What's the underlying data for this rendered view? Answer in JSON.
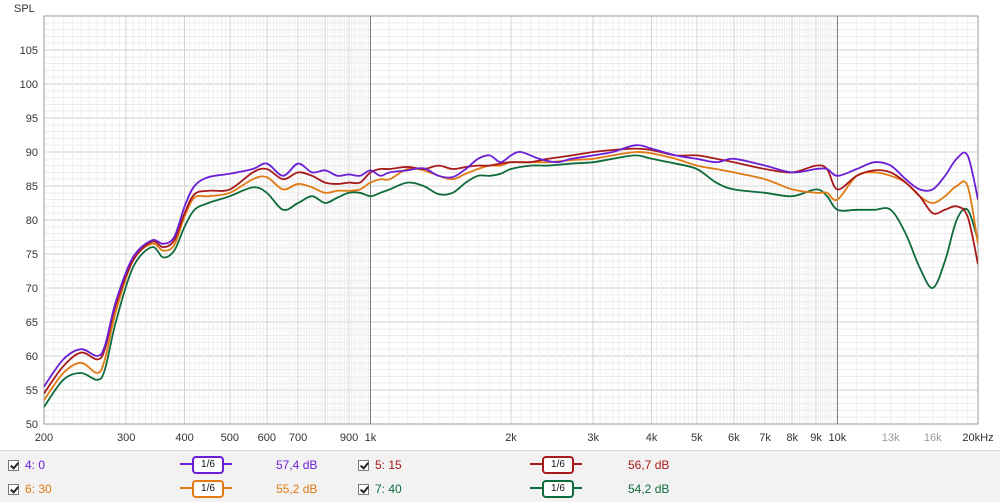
{
  "chart_data": {
    "type": "line",
    "ylabel": "SPL",
    "xlabel": "",
    "x_scale": "log",
    "xlim": [
      200,
      20000
    ],
    "ylim": [
      50,
      110
    ],
    "x_ticks": [
      {
        "v": 200,
        "t": "200"
      },
      {
        "v": 300,
        "t": "300"
      },
      {
        "v": 400,
        "t": "400"
      },
      {
        "v": 500,
        "t": "500"
      },
      {
        "v": 600,
        "t": "600"
      },
      {
        "v": 700,
        "t": "700"
      },
      {
        "v": 900,
        "t": "900"
      },
      {
        "v": 1000,
        "t": "1k"
      },
      {
        "v": 2000,
        "t": "2k"
      },
      {
        "v": 3000,
        "t": "3k"
      },
      {
        "v": 4000,
        "t": "4k"
      },
      {
        "v": 5000,
        "t": "5k"
      },
      {
        "v": 6000,
        "t": "6k"
      },
      {
        "v": 7000,
        "t": "7k"
      },
      {
        "v": 8000,
        "t": "8k"
      },
      {
        "v": 9000,
        "t": "9k"
      },
      {
        "v": 10000,
        "t": "10k"
      },
      {
        "v": 13000,
        "t": "13k",
        "light": true
      },
      {
        "v": 16000,
        "t": "16k",
        "light": true
      },
      {
        "v": 20000,
        "t": "20kHz"
      }
    ],
    "y_ticks": [
      50,
      55,
      60,
      65,
      70,
      75,
      80,
      85,
      90,
      95,
      100,
      105
    ],
    "grid": true,
    "series": [
      {
        "name": "4: 0",
        "color": "#6c1fd6",
        "smoothing": "1/6",
        "level": "57,4 dB",
        "points": [
          [
            200,
            55.5
          ],
          [
            220,
            59.5
          ],
          [
            240,
            61
          ],
          [
            260,
            60
          ],
          [
            270,
            61.5
          ],
          [
            285,
            68
          ],
          [
            310,
            74.5
          ],
          [
            340,
            77
          ],
          [
            360,
            76.5
          ],
          [
            380,
            77.5
          ],
          [
            400,
            82
          ],
          [
            420,
            85
          ],
          [
            450,
            86.3
          ],
          [
            500,
            86.8
          ],
          [
            560,
            87.5
          ],
          [
            600,
            88.3
          ],
          [
            650,
            86.5
          ],
          [
            700,
            88.3
          ],
          [
            750,
            87
          ],
          [
            800,
            87.3
          ],
          [
            850,
            86.5
          ],
          [
            900,
            86.7
          ],
          [
            950,
            86.5
          ],
          [
            1000,
            87.3
          ],
          [
            1050,
            86.5
          ],
          [
            1100,
            87
          ],
          [
            1200,
            87.3
          ],
          [
            1300,
            87.6
          ],
          [
            1400,
            86.5
          ],
          [
            1500,
            86.3
          ],
          [
            1600,
            87.5
          ],
          [
            1700,
            89
          ],
          [
            1800,
            89.5
          ],
          [
            1900,
            88.5
          ],
          [
            2000,
            89.5
          ],
          [
            2100,
            90
          ],
          [
            2300,
            89
          ],
          [
            2500,
            88.5
          ],
          [
            2700,
            89
          ],
          [
            3000,
            89.5
          ],
          [
            3300,
            90
          ],
          [
            3700,
            91
          ],
          [
            4000,
            90.5
          ],
          [
            4500,
            89.5
          ],
          [
            5000,
            89
          ],
          [
            5500,
            88.5
          ],
          [
            6000,
            89
          ],
          [
            7000,
            88
          ],
          [
            8000,
            87
          ],
          [
            9000,
            87.5
          ],
          [
            9500,
            87.5
          ],
          [
            10000,
            86.5
          ],
          [
            11000,
            87.5
          ],
          [
            12000,
            88.5
          ],
          [
            13000,
            88
          ],
          [
            14000,
            86
          ],
          [
            15000,
            84.5
          ],
          [
            16000,
            84.5
          ],
          [
            17000,
            86.5
          ],
          [
            18000,
            89
          ],
          [
            19000,
            89.5
          ],
          [
            20000,
            83
          ]
        ]
      },
      {
        "name": "5: 15",
        "color": "#a81a1a",
        "smoothing": "1/6",
        "level": "56,7 dB",
        "points": [
          [
            200,
            54.5
          ],
          [
            220,
            58.5
          ],
          [
            240,
            60.5
          ],
          [
            260,
            59.5
          ],
          [
            270,
            61
          ],
          [
            285,
            67.5
          ],
          [
            310,
            74
          ],
          [
            340,
            76.8
          ],
          [
            360,
            76
          ],
          [
            380,
            77
          ],
          [
            400,
            81
          ],
          [
            420,
            83.8
          ],
          [
            450,
            84.3
          ],
          [
            500,
            84.5
          ],
          [
            560,
            87
          ],
          [
            600,
            87.5
          ],
          [
            650,
            86
          ],
          [
            700,
            87
          ],
          [
            750,
            86.5
          ],
          [
            800,
            85.5
          ],
          [
            850,
            85.3
          ],
          [
            900,
            85.5
          ],
          [
            950,
            85.5
          ],
          [
            1000,
            87
          ],
          [
            1050,
            87.5
          ],
          [
            1100,
            87.5
          ],
          [
            1200,
            87.8
          ],
          [
            1300,
            87.5
          ],
          [
            1400,
            88
          ],
          [
            1500,
            87.5
          ],
          [
            1600,
            87.8
          ],
          [
            1700,
            88
          ],
          [
            1800,
            88
          ],
          [
            1900,
            88.3
          ],
          [
            2000,
            88.5
          ],
          [
            2200,
            88.5
          ],
          [
            2400,
            89
          ],
          [
            2700,
            89.5
          ],
          [
            3000,
            90
          ],
          [
            3300,
            90.3
          ],
          [
            3700,
            90.5
          ],
          [
            4000,
            90.3
          ],
          [
            4500,
            89.5
          ],
          [
            5000,
            89.5
          ],
          [
            5500,
            89
          ],
          [
            6000,
            88.5
          ],
          [
            7000,
            87.5
          ],
          [
            8000,
            87
          ],
          [
            9000,
            88
          ],
          [
            9500,
            87.5
          ],
          [
            10000,
            84.5
          ],
          [
            11000,
            86.5
          ],
          [
            12000,
            87.3
          ],
          [
            13000,
            87
          ],
          [
            14000,
            85.5
          ],
          [
            15000,
            83.5
          ],
          [
            16000,
            81
          ],
          [
            17000,
            81.5
          ],
          [
            18000,
            82
          ],
          [
            19000,
            80.5
          ],
          [
            20000,
            73.5
          ]
        ]
      },
      {
        "name": "6: 30",
        "color": "#e07a12",
        "smoothing": "1/6",
        "level": "55,2 dB",
        "points": [
          [
            200,
            53.5
          ],
          [
            220,
            57.5
          ],
          [
            240,
            59
          ],
          [
            260,
            57.5
          ],
          [
            270,
            59.5
          ],
          [
            285,
            66.5
          ],
          [
            310,
            74
          ],
          [
            340,
            76.5
          ],
          [
            360,
            75.5
          ],
          [
            380,
            76.3
          ],
          [
            400,
            80.5
          ],
          [
            420,
            83.3
          ],
          [
            450,
            83.5
          ],
          [
            500,
            84
          ],
          [
            560,
            86
          ],
          [
            600,
            86.3
          ],
          [
            650,
            84.5
          ],
          [
            700,
            85.3
          ],
          [
            750,
            84.8
          ],
          [
            800,
            84
          ],
          [
            850,
            84.3
          ],
          [
            900,
            84.3
          ],
          [
            950,
            84.5
          ],
          [
            1000,
            85.5
          ],
          [
            1050,
            86
          ],
          [
            1100,
            86
          ],
          [
            1200,
            87.5
          ],
          [
            1300,
            87.3
          ],
          [
            1400,
            86.5
          ],
          [
            1500,
            86
          ],
          [
            1600,
            86.8
          ],
          [
            1700,
            87.5
          ],
          [
            1800,
            88
          ],
          [
            1900,
            88
          ],
          [
            2000,
            88.5
          ],
          [
            2200,
            88.5
          ],
          [
            2400,
            88.5
          ],
          [
            2700,
            88.8
          ],
          [
            3000,
            89
          ],
          [
            3300,
            89.5
          ],
          [
            3700,
            90
          ],
          [
            4000,
            89.8
          ],
          [
            4500,
            89
          ],
          [
            5000,
            88
          ],
          [
            5500,
            87.5
          ],
          [
            6000,
            87
          ],
          [
            7000,
            86
          ],
          [
            8000,
            84.5
          ],
          [
            9000,
            84
          ],
          [
            9500,
            84
          ],
          [
            10000,
            83
          ],
          [
            11000,
            86.5
          ],
          [
            12000,
            87
          ],
          [
            13000,
            86.5
          ],
          [
            14000,
            85.5
          ],
          [
            15000,
            83.5
          ],
          [
            16000,
            82.5
          ],
          [
            17000,
            83.5
          ],
          [
            18000,
            85
          ],
          [
            19000,
            85
          ],
          [
            20000,
            76.5
          ]
        ]
      },
      {
        "name": "7: 40",
        "color": "#0f6b3c",
        "smoothing": "1/6",
        "level": "54,2 dB",
        "points": [
          [
            200,
            52.5
          ],
          [
            220,
            56.5
          ],
          [
            240,
            57.5
          ],
          [
            260,
            56.5
          ],
          [
            270,
            58
          ],
          [
            285,
            65
          ],
          [
            310,
            73
          ],
          [
            340,
            76
          ],
          [
            360,
            74.5
          ],
          [
            380,
            75.5
          ],
          [
            400,
            79
          ],
          [
            420,
            81.5
          ],
          [
            450,
            82.5
          ],
          [
            500,
            83.5
          ],
          [
            560,
            84.8
          ],
          [
            600,
            84
          ],
          [
            650,
            81.5
          ],
          [
            700,
            82.5
          ],
          [
            750,
            83.5
          ],
          [
            800,
            82.5
          ],
          [
            850,
            83.3
          ],
          [
            900,
            84
          ],
          [
            950,
            84
          ],
          [
            1000,
            83.5
          ],
          [
            1050,
            84
          ],
          [
            1100,
            84.5
          ],
          [
            1200,
            85.5
          ],
          [
            1300,
            85
          ],
          [
            1400,
            83.8
          ],
          [
            1500,
            84
          ],
          [
            1600,
            85.5
          ],
          [
            1700,
            86.5
          ],
          [
            1800,
            86.5
          ],
          [
            1900,
            86.8
          ],
          [
            2000,
            87.5
          ],
          [
            2200,
            88
          ],
          [
            2400,
            88
          ],
          [
            2700,
            88.3
          ],
          [
            3000,
            88.5
          ],
          [
            3300,
            89
          ],
          [
            3700,
            89.5
          ],
          [
            4000,
            89
          ],
          [
            4500,
            88.3
          ],
          [
            5000,
            87.5
          ],
          [
            5500,
            85.5
          ],
          [
            6000,
            84.5
          ],
          [
            7000,
            84
          ],
          [
            8000,
            83.5
          ],
          [
            9000,
            84.5
          ],
          [
            9500,
            83.5
          ],
          [
            10000,
            81.5
          ],
          [
            11000,
            81.5
          ],
          [
            12000,
            81.5
          ],
          [
            13000,
            81.5
          ],
          [
            14000,
            78
          ],
          [
            15000,
            73
          ],
          [
            16000,
            70
          ],
          [
            17000,
            74
          ],
          [
            18000,
            80
          ],
          [
            19000,
            81.5
          ],
          [
            20000,
            77
          ]
        ]
      }
    ]
  },
  "legend": {
    "items": [
      {
        "label": "4: 0",
        "smooth": "1/6",
        "db": "57,4 dB",
        "color": "#6c1fd6"
      },
      {
        "label": "5: 15",
        "smooth": "1/6",
        "db": "56,7 dB",
        "color": "#a81a1a"
      },
      {
        "label": "6: 30",
        "smooth": "1/6",
        "db": "55,2 dB",
        "color": "#e07a12"
      },
      {
        "label": "7: 40",
        "smooth": "1/6",
        "db": "54,2 dB",
        "color": "#0f6b3c"
      }
    ]
  }
}
